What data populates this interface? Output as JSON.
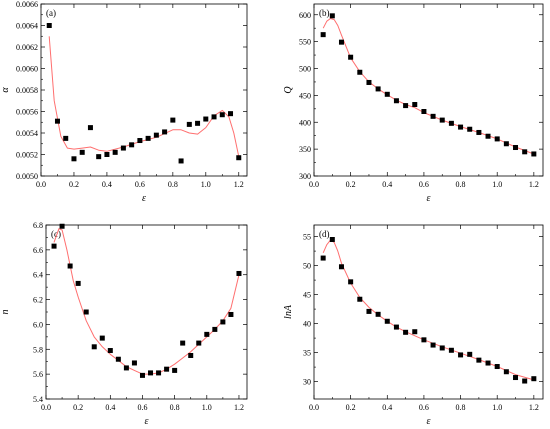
{
  "style": {
    "marker_color": "#000000",
    "fit_color": "#ff6f6f",
    "axis_color": "#000000"
  },
  "chart_data": [
    {
      "panel_label": "(a)",
      "type": "scatter",
      "xlabel": "ε",
      "ylabel": "α",
      "xlim": [
        0,
        1.25
      ],
      "ylim": [
        0.005,
        0.0066
      ],
      "xticks": [
        0.0,
        0.2,
        0.4,
        0.6,
        0.8,
        1.0,
        1.2
      ],
      "xtick_labels": [
        "0.0",
        "0.2",
        "0.4",
        "0.6",
        "0.8",
        "1.0",
        "1.2"
      ],
      "yticks": [
        0.005,
        0.0052,
        0.0054,
        0.0056,
        0.0058,
        0.006,
        0.0062,
        0.0064,
        0.0066
      ],
      "ytick_labels": [
        "0.0050",
        "0.0052",
        "0.0054",
        "0.0056",
        "0.0058",
        "0.0060",
        "0.0062",
        "0.0064",
        "0.0066"
      ],
      "grid": false,
      "series": [
        {
          "x": [
            0.05,
            0.1,
            0.15,
            0.2,
            0.25,
            0.3,
            0.35,
            0.4,
            0.45,
            0.5,
            0.55,
            0.6,
            0.65,
            0.7,
            0.75,
            0.8,
            0.85,
            0.9,
            0.95,
            1.0,
            1.05,
            1.1,
            1.15,
            1.2
          ],
          "y": [
            0.0064,
            0.00551,
            0.00535,
            0.00516,
            0.00522,
            0.00545,
            0.00518,
            0.0052,
            0.00522,
            0.00526,
            0.00529,
            0.00533,
            0.00535,
            0.00538,
            0.00541,
            0.00552,
            0.00514,
            0.00548,
            0.00549,
            0.00553,
            0.00555,
            0.00557,
            0.00558,
            0.00517
          ],
          "fit": [
            [
              0.05,
              0.0063
            ],
            [
              0.08,
              0.0057
            ],
            [
              0.12,
              0.00537
            ],
            [
              0.16,
              0.00526
            ],
            [
              0.2,
              0.00525
            ],
            [
              0.25,
              0.00526
            ],
            [
              0.3,
              0.00527
            ],
            [
              0.35,
              0.00524
            ],
            [
              0.4,
              0.00523
            ],
            [
              0.5,
              0.00527
            ],
            [
              0.6,
              0.00532
            ],
            [
              0.7,
              0.00536
            ],
            [
              0.8,
              0.00543
            ],
            [
              0.85,
              0.00543
            ],
            [
              0.9,
              0.0054
            ],
            [
              0.95,
              0.00539
            ],
            [
              1.0,
              0.00545
            ],
            [
              1.05,
              0.00556
            ],
            [
              1.1,
              0.00561
            ],
            [
              1.14,
              0.00555
            ],
            [
              1.17,
              0.0054
            ],
            [
              1.2,
              0.00518
            ]
          ]
        }
      ]
    },
    {
      "panel_label": "(b)",
      "type": "scatter",
      "xlabel": "ε",
      "ylabel": "Q",
      "xlim": [
        0,
        1.25
      ],
      "ylim": [
        300,
        620
      ],
      "xticks": [
        0.0,
        0.2,
        0.4,
        0.6,
        0.8,
        1.0,
        1.2
      ],
      "xtick_labels": [
        "0.0",
        "0.2",
        "0.4",
        "0.6",
        "0.8",
        "1.0",
        "1.2"
      ],
      "yticks": [
        300,
        350,
        400,
        450,
        500,
        550,
        600
      ],
      "ytick_labels": [
        "300",
        "350",
        "400",
        "450",
        "500",
        "550",
        "600"
      ],
      "grid": false,
      "series": [
        {
          "x": [
            0.05,
            0.1,
            0.15,
            0.2,
            0.25,
            0.3,
            0.35,
            0.4,
            0.45,
            0.5,
            0.55,
            0.6,
            0.65,
            0.7,
            0.75,
            0.8,
            0.85,
            0.9,
            0.95,
            1.0,
            1.05,
            1.1,
            1.15,
            1.2
          ],
          "y": [
            563,
            598,
            549,
            521,
            493,
            474,
            462,
            452,
            440,
            431,
            433,
            420,
            411,
            404,
            398,
            391,
            387,
            381,
            374,
            369,
            360,
            353,
            345,
            341
          ],
          "fit": [
            [
              0.05,
              575
            ],
            [
              0.07,
              588
            ],
            [
              0.09,
              593
            ],
            [
              0.11,
              591
            ],
            [
              0.13,
              580
            ],
            [
              0.15,
              562
            ],
            [
              0.2,
              520
            ],
            [
              0.25,
              494
            ],
            [
              0.3,
              475
            ],
            [
              0.35,
              462
            ],
            [
              0.4,
              451
            ],
            [
              0.45,
              441
            ],
            [
              0.5,
              433
            ],
            [
              0.55,
              427
            ],
            [
              0.6,
              418
            ],
            [
              0.7,
              404
            ],
            [
              0.8,
              392
            ],
            [
              0.9,
              381
            ],
            [
              1.0,
              369
            ],
            [
              1.1,
              354
            ],
            [
              1.2,
              341
            ]
          ]
        }
      ]
    },
    {
      "panel_label": "(c)",
      "type": "scatter",
      "xlabel": "ε",
      "ylabel": "n",
      "xlim": [
        0,
        1.25
      ],
      "ylim": [
        5.4,
        6.8
      ],
      "xticks": [
        0.0,
        0.2,
        0.4,
        0.6,
        0.8,
        1.0,
        1.2
      ],
      "xtick_labels": [
        "0.0",
        "0.2",
        "0.4",
        "0.6",
        "0.8",
        "1.0",
        "1.2"
      ],
      "yticks": [
        5.4,
        5.6,
        5.8,
        6.0,
        6.2,
        6.4,
        6.6,
        6.8
      ],
      "ytick_labels": [
        "5.4",
        "5.6",
        "5.8",
        "6.0",
        "6.2",
        "6.4",
        "6.6",
        "6.8"
      ],
      "grid": false,
      "series": [
        {
          "x": [
            0.05,
            0.1,
            0.15,
            0.2,
            0.25,
            0.3,
            0.35,
            0.4,
            0.45,
            0.5,
            0.55,
            0.6,
            0.65,
            0.7,
            0.75,
            0.8,
            0.85,
            0.9,
            0.95,
            1.0,
            1.05,
            1.1,
            1.15,
            1.2
          ],
          "y": [
            6.63,
            6.79,
            6.47,
            6.33,
            6.1,
            5.82,
            5.89,
            5.79,
            5.72,
            5.65,
            5.69,
            5.59,
            5.61,
            5.61,
            5.64,
            5.63,
            5.85,
            5.75,
            5.85,
            5.92,
            5.96,
            6.02,
            6.08,
            6.41
          ],
          "fit": [
            [
              0.05,
              6.66
            ],
            [
              0.08,
              6.77
            ],
            [
              0.1,
              6.76
            ],
            [
              0.13,
              6.6
            ],
            [
              0.17,
              6.35
            ],
            [
              0.2,
              6.22
            ],
            [
              0.25,
              6.03
            ],
            [
              0.3,
              5.9
            ],
            [
              0.35,
              5.82
            ],
            [
              0.4,
              5.76
            ],
            [
              0.45,
              5.71
            ],
            [
              0.5,
              5.66
            ],
            [
              0.55,
              5.63
            ],
            [
              0.6,
              5.6
            ],
            [
              0.65,
              5.6
            ],
            [
              0.7,
              5.61
            ],
            [
              0.75,
              5.64
            ],
            [
              0.8,
              5.68
            ],
            [
              0.85,
              5.73
            ],
            [
              0.9,
              5.78
            ],
            [
              0.95,
              5.84
            ],
            [
              1.0,
              5.9
            ],
            [
              1.05,
              5.96
            ],
            [
              1.1,
              6.03
            ],
            [
              1.15,
              6.13
            ],
            [
              1.2,
              6.4
            ]
          ]
        }
      ]
    },
    {
      "panel_label": "(d)",
      "type": "scatter",
      "xlabel": "ε",
      "ylabel": "lnA",
      "xlim": [
        0,
        1.25
      ],
      "ylim": [
        27,
        57
      ],
      "xticks": [
        0.0,
        0.2,
        0.4,
        0.6,
        0.8,
        1.0,
        1.2
      ],
      "xtick_labels": [
        "0.0",
        "0.2",
        "0.4",
        "0.6",
        "0.8",
        "1.0",
        "1.2"
      ],
      "yticks": [
        30,
        35,
        40,
        45,
        50,
        55
      ],
      "ytick_labels": [
        "30",
        "35",
        "40",
        "45",
        "50",
        "55"
      ],
      "grid": false,
      "series": [
        {
          "x": [
            0.05,
            0.1,
            0.15,
            0.2,
            0.25,
            0.3,
            0.35,
            0.4,
            0.45,
            0.5,
            0.55,
            0.6,
            0.65,
            0.7,
            0.75,
            0.8,
            0.85,
            0.9,
            0.95,
            1.0,
            1.05,
            1.1,
            1.15,
            1.2
          ],
          "y": [
            51.3,
            54.5,
            49.8,
            47.2,
            44.2,
            42.1,
            41.6,
            40.4,
            39.4,
            38.5,
            38.6,
            37.2,
            36.3,
            35.8,
            35.4,
            34.6,
            34.7,
            33.7,
            33.2,
            32.6,
            31.7,
            30.7,
            30.1,
            30.5
          ],
          "fit": [
            [
              0.05,
              52.2
            ],
            [
              0.07,
              53.6
            ],
            [
              0.09,
              54.4
            ],
            [
              0.11,
              54.0
            ],
            [
              0.13,
              52.5
            ],
            [
              0.15,
              50.4
            ],
            [
              0.2,
              47.0
            ],
            [
              0.25,
              44.5
            ],
            [
              0.3,
              42.8
            ],
            [
              0.35,
              41.5
            ],
            [
              0.4,
              40.4
            ],
            [
              0.45,
              39.4
            ],
            [
              0.5,
              38.6
            ],
            [
              0.6,
              37.2
            ],
            [
              0.7,
              36.0
            ],
            [
              0.8,
              34.9
            ],
            [
              0.9,
              33.8
            ],
            [
              1.0,
              32.6
            ],
            [
              1.1,
              31.2
            ],
            [
              1.2,
              30.3
            ]
          ]
        }
      ]
    }
  ]
}
